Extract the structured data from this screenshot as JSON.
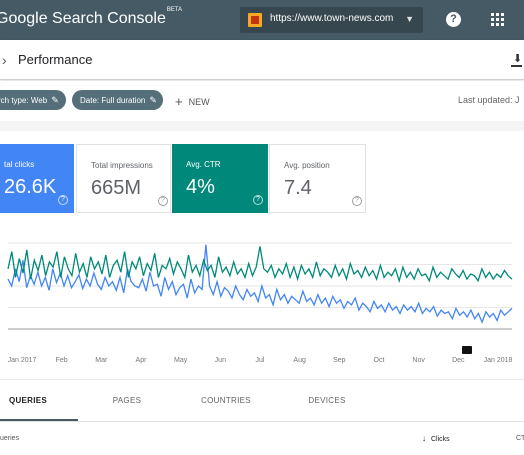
{
  "app": {
    "brand": "Google Search Console",
    "beta_label": "BETA",
    "property_url": "https://www.town-news.com"
  },
  "colors": {
    "topbar": "#455a64",
    "clicks": "#4285f4",
    "ctr": "#00897b"
  },
  "icons": [
    "property-favicon-icon",
    "dropdown-caret-icon",
    "help-icon",
    "apps-grid-icon",
    "chevron-right-icon",
    "download-icon",
    "edit-pencil-icon",
    "plus-icon",
    "question-icon",
    "annotation-flag-icon",
    "sort-arrow-down-icon"
  ],
  "page": {
    "title": "Performance"
  },
  "filters": {
    "search_type": "rch type: Web",
    "date": "Date: Full duration",
    "new_label": "NEW",
    "last_updated": "Last updated: J"
  },
  "metrics": [
    {
      "label": "tal clicks",
      "value": "26.6K",
      "selected": true
    },
    {
      "label": "Total impressions",
      "value": "665M",
      "selected": false
    },
    {
      "label": "Avg. CTR",
      "value": "4%",
      "selected": true
    },
    {
      "label": "Avg. position",
      "value": "7.4",
      "selected": false
    }
  ],
  "chart_data": {
    "type": "line",
    "x_labels": [
      "Jan 2017",
      "Feb",
      "Mar",
      "Apr",
      "May",
      "Jun",
      "Jul",
      "Aug",
      "Sep",
      "Oct",
      "Nov",
      "Dec",
      "Jan 2018"
    ],
    "series": [
      {
        "color": "#4285f4",
        "values": [
          0.58,
          0.5,
          0.7,
          0.55,
          0.8,
          0.48,
          0.62,
          0.52,
          0.66,
          0.5,
          0.6,
          0.45,
          0.7,
          0.54,
          0.65,
          0.5,
          0.62,
          0.48,
          0.55,
          0.63,
          0.47,
          0.58,
          0.5,
          0.65,
          0.52,
          0.46,
          0.6,
          0.5,
          0.55,
          0.45,
          0.6,
          0.42,
          0.7,
          0.55,
          0.5,
          0.48,
          0.58,
          0.44,
          0.66,
          0.5,
          0.52,
          0.38,
          0.6,
          0.46,
          0.55,
          0.4,
          0.48,
          0.52,
          0.36,
          0.58,
          0.42,
          0.5,
          0.46,
          0.98,
          0.5,
          0.4,
          0.55,
          0.38,
          0.48,
          0.44,
          0.36,
          0.5,
          0.4,
          0.34,
          0.46,
          0.38,
          0.42,
          0.32,
          0.5,
          0.36,
          0.4,
          0.28,
          0.46,
          0.34,
          0.4,
          0.3,
          0.38,
          0.34,
          0.3,
          0.44,
          0.32,
          0.36,
          0.28,
          0.4,
          0.3,
          0.36,
          0.26,
          0.38,
          0.3,
          0.34,
          0.24,
          0.32,
          0.28,
          0.36,
          0.22,
          0.3,
          0.26,
          0.2,
          0.32,
          0.24,
          0.28,
          0.2,
          0.3,
          0.22,
          0.26,
          0.18,
          0.28,
          0.22,
          0.26,
          0.2,
          0.3,
          0.18,
          0.24,
          0.2,
          0.26,
          0.15,
          0.22,
          0.18,
          0.2,
          0.12,
          0.24,
          0.16,
          0.2,
          0.14,
          0.22,
          0.12,
          0.18,
          0.08,
          0.2,
          0.14,
          0.18,
          0.1,
          0.22,
          0.16,
          0.2,
          0.24
        ]
      },
      {
        "color": "#00897b",
        "values": [
          0.7,
          0.9,
          0.6,
          0.82,
          0.65,
          0.92,
          0.58,
          0.8,
          0.68,
          0.86,
          0.62,
          0.78,
          0.72,
          0.9,
          0.6,
          0.84,
          0.7,
          0.62,
          0.88,
          0.66,
          0.76,
          0.6,
          0.84,
          0.7,
          0.78,
          0.64,
          0.86,
          0.6,
          0.74,
          0.8,
          0.66,
          0.9,
          0.6,
          0.78,
          0.7,
          0.84,
          0.62,
          0.76,
          0.68,
          0.88,
          0.6,
          0.74,
          0.7,
          0.82,
          0.64,
          0.78,
          0.7,
          0.6,
          0.86,
          0.66,
          0.74,
          0.62,
          0.8,
          0.68,
          0.74,
          0.6,
          0.84,
          0.66,
          0.72,
          0.62,
          0.78,
          0.64,
          0.7,
          0.6,
          0.76,
          0.62,
          0.72,
          0.96,
          0.7,
          0.66,
          0.74,
          0.6,
          0.7,
          0.64,
          0.76,
          0.6,
          0.72,
          0.58,
          0.74,
          0.64,
          0.7,
          0.6,
          0.78,
          0.62,
          0.7,
          0.66,
          0.6,
          0.74,
          0.62,
          0.7,
          0.58,
          0.76,
          0.64,
          0.68,
          0.6,
          0.72,
          0.62,
          0.68,
          0.58,
          0.74,
          0.6,
          0.66,
          0.62,
          0.7,
          0.56,
          0.72,
          0.6,
          0.66,
          0.58,
          0.7,
          0.62,
          0.64,
          0.56,
          0.72,
          0.6,
          0.66,
          0.62,
          0.58,
          0.7,
          0.64,
          0.6,
          0.68,
          0.58,
          0.64,
          0.62,
          0.56,
          0.7,
          0.6,
          0.66,
          0.58,
          0.64,
          0.6,
          0.68,
          0.62,
          0.58
        ]
      }
    ]
  },
  "tabs": [
    {
      "label": "QUERIES",
      "active": true
    },
    {
      "label": "PAGES",
      "active": false
    },
    {
      "label": "COUNTRIES",
      "active": false
    },
    {
      "label": "DEVICES",
      "active": false
    }
  ],
  "table": {
    "col_queries": "ueries",
    "col_clicks": "Clicks",
    "col_ctr": "CT"
  }
}
